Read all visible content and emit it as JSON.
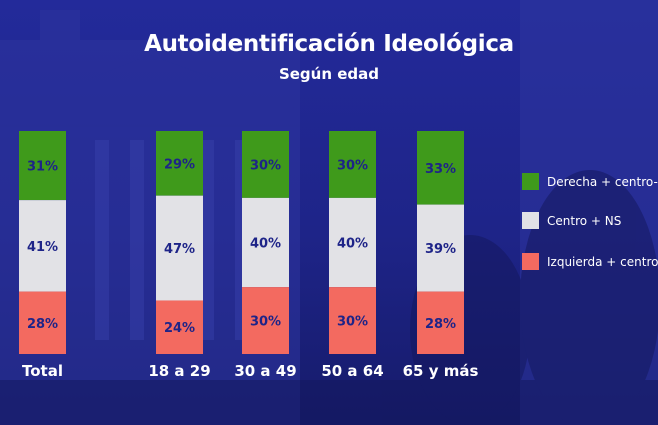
{
  "chart_data": {
    "type": "bar",
    "stacked": true,
    "title": "Autoidentificación Ideológica",
    "subtitle": "Según edad",
    "categories": [
      "Total",
      "18 a 29",
      "30 a 49",
      "50 a 64",
      "65 y más"
    ],
    "series": [
      {
        "name": "Derecha + centro-derecha",
        "color": "#3f9a1b",
        "values": [
          31,
          29,
          30,
          30,
          33
        ],
        "labels": [
          "31%",
          "29%",
          "30%",
          "30%",
          "33%"
        ]
      },
      {
        "name": "Centro + NS",
        "color": "#e2e2e6",
        "values": [
          41,
          47,
          40,
          40,
          39
        ],
        "labels": [
          "41%",
          "47%",
          "40%",
          "40%",
          "39%"
        ]
      },
      {
        "name": "Izquierda + centro-izquierda",
        "color": "#f36a60",
        "values": [
          28,
          24,
          30,
          30,
          28
        ],
        "labels": [
          "28%",
          "24%",
          "30%",
          "30%",
          "28%"
        ]
      }
    ],
    "legend": [
      {
        "label": "Derecha + centro-derecha",
        "color": "#3f9a1b"
      },
      {
        "label": "Centro + NS",
        "color": "#e2e2e6"
      },
      {
        "label": "Izquierda + centro-izquierda",
        "color": "#f36a60"
      }
    ],
    "legend_position": "right",
    "ylim": [
      0,
      100
    ]
  }
}
